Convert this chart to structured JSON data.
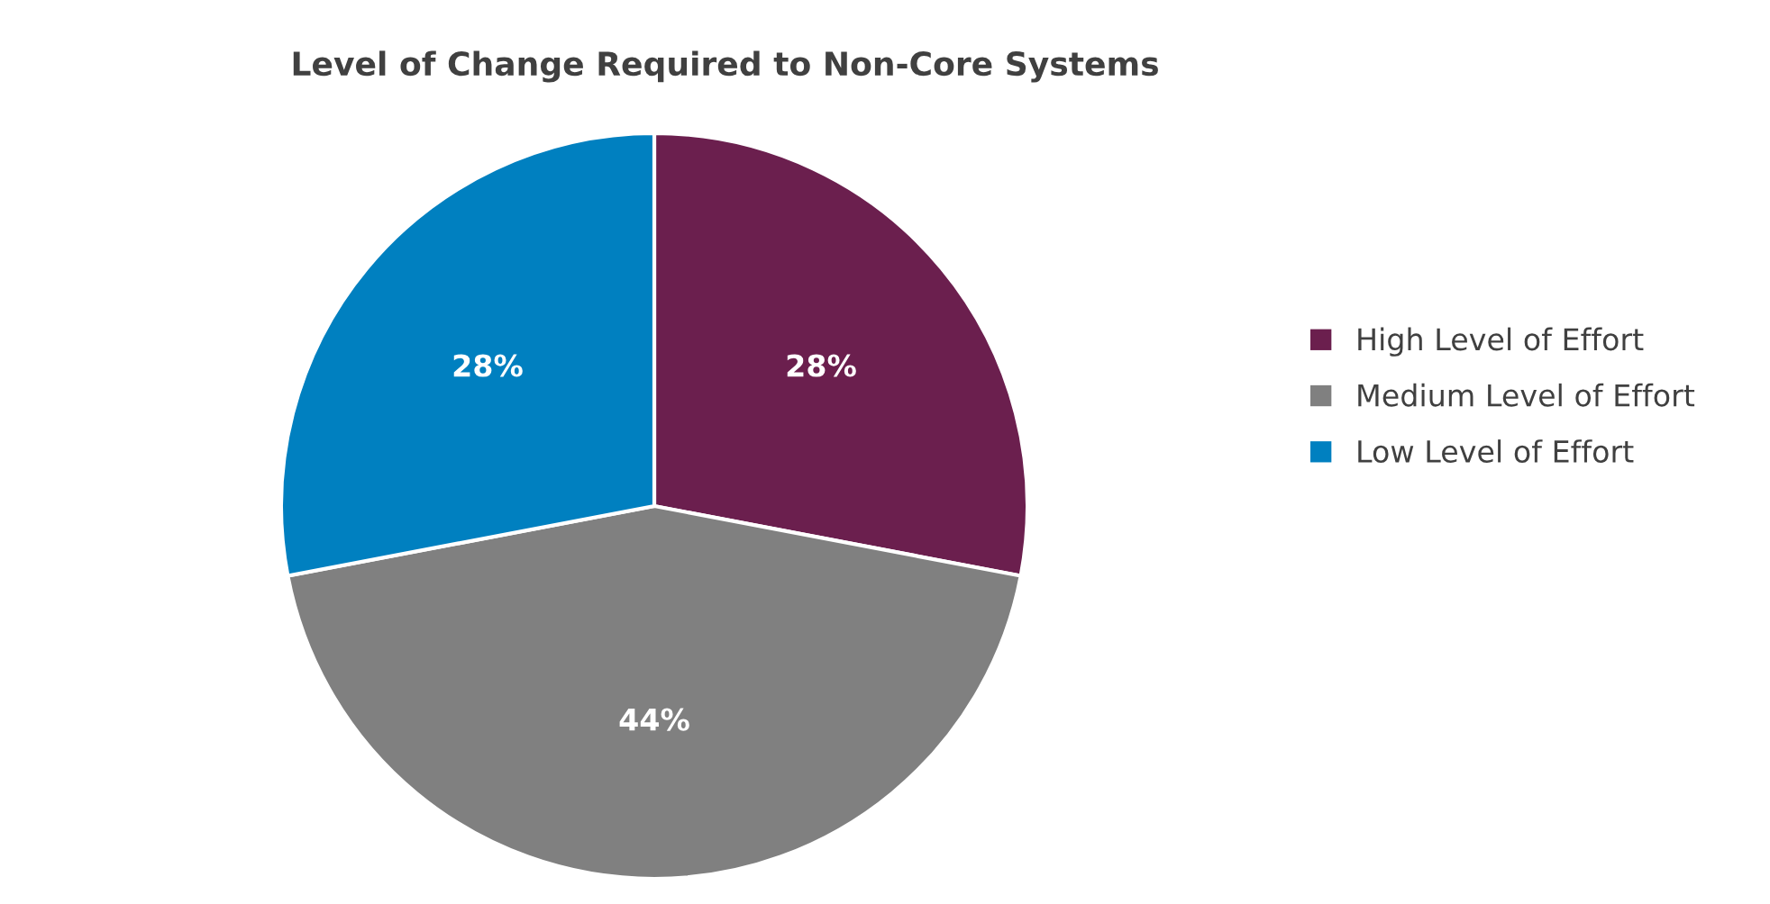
{
  "chart_data": {
    "type": "pie",
    "title": "Level of Change Required to Non-Core Systems",
    "categories": [
      "High Level of Effort",
      "Medium Level of Effort",
      "Low Level of Effort"
    ],
    "values": [
      28,
      44,
      28
    ],
    "colors": [
      "#6b1f4e",
      "#808080",
      "#0080c0"
    ],
    "value_labels": [
      "28%",
      "44%",
      "28%"
    ],
    "legend": "right"
  }
}
